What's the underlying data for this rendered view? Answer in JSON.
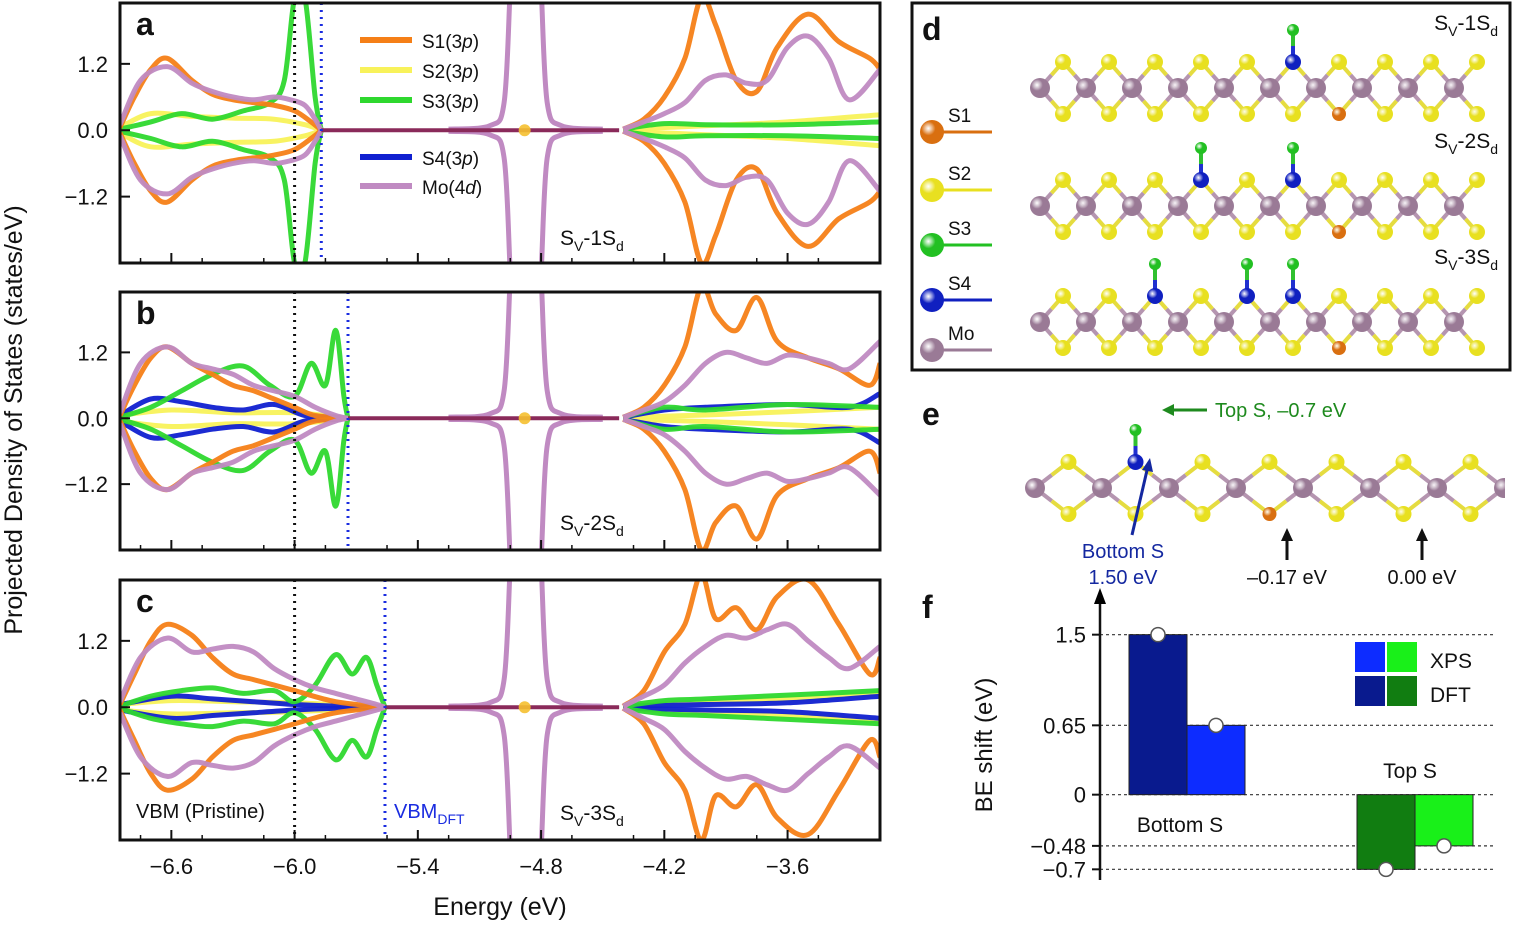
{
  "figure": {
    "shared_ylabel": "Projected Density of States (states/eV)",
    "shared_xlabel": "Energy (eV)"
  },
  "colors": {
    "S1": "#f57f17",
    "S2": "#f8f25a",
    "S3": "#2ed82e",
    "S4": "#1020d0",
    "Mo": "#c08ac2",
    "vbm_pristine": "#111111",
    "vbm_dft": "#1a2ce0",
    "top_s_label": "#1e8a1e",
    "bottom_s_label": "#1428a0",
    "xps_blue": "#0d2cff",
    "dft_blue": "#091a8e",
    "xps_green": "#19f019",
    "dft_green": "#117d11",
    "atom_S1": "#d96f10",
    "atom_S2": "#e8e020",
    "atom_S3": "#22c022",
    "atom_S4": "#1020c0",
    "atom_Mo": "#9a7a96"
  },
  "chart_data": [
    {
      "panel": "a",
      "type": "line",
      "annotation": "Sv-1Sd",
      "x_ticks": [
        "-6.6",
        "-6.0",
        "-5.4",
        "-4.8",
        "-4.2",
        "-3.6"
      ],
      "y_ticks": [
        "1.2",
        "0.0",
        "−1.2"
      ],
      "xlim": [
        -6.85,
        -3.15
      ],
      "ylim": [
        -2.4,
        2.3
      ],
      "vbm_pristine": -6.0,
      "vbm_dft": -5.87,
      "legend": [
        "S1(3p)",
        "S2(3p)",
        "S3(3p)",
        "S4(3p)",
        "Mo(4d)"
      ],
      "series": [
        {
          "name": "Mo(4d)",
          "x": [
            -6.85,
            -6.75,
            -6.62,
            -6.5,
            -6.4,
            -6.3,
            -6.2,
            -6.1,
            -6.02,
            -5.95,
            -5.9,
            -5.87
          ],
          "y": [
            0.1,
            0.9,
            1.15,
            0.85,
            0.7,
            0.6,
            0.55,
            0.6,
            0.55,
            0.45,
            0.2,
            0.0
          ]
        },
        {
          "name": "S1(3p)",
          "x": [
            -6.85,
            -6.78,
            -6.7,
            -6.62,
            -6.5,
            -6.4,
            -6.3,
            -6.2,
            -6.1,
            -6.0,
            -5.92,
            -5.87
          ],
          "y": [
            0.05,
            0.6,
            1.1,
            1.3,
            0.9,
            0.65,
            0.55,
            0.5,
            0.45,
            0.35,
            0.15,
            0.0
          ]
        },
        {
          "name": "S2(3p)",
          "x": [
            -6.85,
            -6.7,
            -6.5,
            -6.3,
            -6.1,
            -5.95,
            -5.87
          ],
          "y": [
            0.05,
            0.3,
            0.25,
            0.22,
            0.2,
            0.1,
            0.0
          ]
        },
        {
          "name": "S3(3p)",
          "x": [
            -6.85,
            -6.7,
            -6.55,
            -6.4,
            -6.25,
            -6.12,
            -6.05,
            -6.0,
            -5.95,
            -5.9,
            -5.87
          ],
          "y": [
            0.02,
            0.15,
            0.3,
            0.2,
            0.35,
            0.5,
            0.9,
            2.4,
            2.4,
            0.6,
            0.0
          ]
        }
      ],
      "series_high_energy": [
        {
          "name": "S1(3p)",
          "x": [
            -4.4,
            -4.3,
            -4.2,
            -4.1,
            -4.02,
            -3.95,
            -3.85,
            -3.75,
            -3.65,
            -3.5,
            -3.35,
            -3.2,
            -3.15
          ],
          "y": [
            0.02,
            0.2,
            0.6,
            1.3,
            2.4,
            1.9,
            0.9,
            0.7,
            1.5,
            2.1,
            1.6,
            1.3,
            1.1
          ]
        },
        {
          "name": "Mo(4d)",
          "x": [
            -4.4,
            -4.3,
            -4.2,
            -4.1,
            -4.0,
            -3.9,
            -3.8,
            -3.7,
            -3.6,
            -3.5,
            -3.4,
            -3.3,
            -3.15
          ],
          "y": [
            0.02,
            0.15,
            0.3,
            0.5,
            0.9,
            1.0,
            0.85,
            0.9,
            1.5,
            1.7,
            1.3,
            0.55,
            1.1
          ]
        },
        {
          "name": "S3(3p)",
          "x": [
            -4.4,
            -4.2,
            -4.0,
            -3.6,
            -3.15
          ],
          "y": [
            0.02,
            0.12,
            0.1,
            0.1,
            0.15
          ]
        },
        {
          "name": "S2(3p)",
          "x": [
            -4.4,
            -4.0,
            -3.6,
            -3.15
          ],
          "y": [
            0.02,
            0.08,
            0.15,
            0.28
          ]
        }
      ],
      "mo_peak_x": -4.88
    },
    {
      "panel": "b",
      "type": "line",
      "annotation": "Sv-2Sd",
      "x_ticks": [
        "-6.6",
        "-6.0",
        "-5.4",
        "-4.8",
        "-4.2",
        "-3.6"
      ],
      "y_ticks": [
        "1.2",
        "0.0",
        "−1.2"
      ],
      "xlim": [
        -6.85,
        -3.15
      ],
      "ylim": [
        -2.4,
        2.3
      ],
      "vbm_pristine": -6.0,
      "vbm_dft": -5.74,
      "series": [
        {
          "name": "Mo(4d)",
          "x": [
            -6.85,
            -6.75,
            -6.62,
            -6.5,
            -6.4,
            -6.3,
            -6.2,
            -6.1,
            -6.0,
            -5.9,
            -5.8,
            -5.74
          ],
          "y": [
            0.1,
            1.0,
            1.3,
            1.0,
            0.9,
            0.8,
            0.6,
            0.5,
            0.4,
            0.2,
            0.05,
            0.0
          ]
        },
        {
          "name": "S1(3p)",
          "x": [
            -6.85,
            -6.78,
            -6.7,
            -6.62,
            -6.5,
            -6.4,
            -6.3,
            -6.2,
            -6.1,
            -6.0,
            -5.9,
            -5.74
          ],
          "y": [
            0.05,
            0.6,
            1.1,
            1.3,
            1.0,
            0.8,
            0.6,
            0.5,
            0.35,
            0.2,
            0.05,
            0.0
          ]
        },
        {
          "name": "S3(3p)",
          "x": [
            -6.85,
            -6.7,
            -6.55,
            -6.4,
            -6.25,
            -6.12,
            -6.0,
            -5.92,
            -5.85,
            -5.8,
            -5.76,
            -5.74
          ],
          "y": [
            0.02,
            0.2,
            0.5,
            0.8,
            0.95,
            0.6,
            0.4,
            1.0,
            0.6,
            1.6,
            0.4,
            0.0
          ]
        },
        {
          "name": "S4(3p)",
          "x": [
            -6.85,
            -6.7,
            -6.55,
            -6.4,
            -6.25,
            -6.1,
            -5.95,
            -5.8,
            -5.74
          ],
          "y": [
            0.05,
            0.35,
            0.3,
            0.2,
            0.15,
            0.25,
            0.05,
            0.02,
            0.0
          ]
        },
        {
          "name": "S2(3p)",
          "x": [
            -6.85,
            -6.6,
            -6.3,
            -6.0,
            -5.74
          ],
          "y": [
            0.05,
            0.15,
            0.1,
            0.1,
            0.0
          ]
        }
      ],
      "series_high_energy": [
        {
          "name": "S1(3p)",
          "x": [
            -4.4,
            -4.3,
            -4.2,
            -4.1,
            -4.02,
            -3.95,
            -3.85,
            -3.75,
            -3.65,
            -3.5,
            -3.35,
            -3.2,
            -3.15
          ],
          "y": [
            0.02,
            0.2,
            0.6,
            1.3,
            2.4,
            1.9,
            1.6,
            2.2,
            1.4,
            1.1,
            0.9,
            0.6,
            1.0
          ]
        },
        {
          "name": "Mo(4d)",
          "x": [
            -4.4,
            -4.3,
            -4.2,
            -4.1,
            -4.0,
            -3.9,
            -3.8,
            -3.7,
            -3.6,
            -3.5,
            -3.4,
            -3.3,
            -3.15
          ],
          "y": [
            0.02,
            0.15,
            0.3,
            0.6,
            1.0,
            1.2,
            1.1,
            1.0,
            1.15,
            1.1,
            1.0,
            0.9,
            1.4
          ]
        },
        {
          "name": "S3(3p)",
          "x": [
            -4.4,
            -4.2,
            -4.0,
            -3.6,
            -3.15
          ],
          "y": [
            0.02,
            0.2,
            0.15,
            0.25,
            0.2
          ]
        },
        {
          "name": "S4(3p)",
          "x": [
            -4.4,
            -4.2,
            -4.0,
            -3.6,
            -3.3,
            -3.15
          ],
          "y": [
            0.02,
            0.15,
            0.2,
            0.25,
            0.2,
            0.45
          ]
        },
        {
          "name": "S2(3p)",
          "x": [
            -4.4,
            -4.0,
            -3.6,
            -3.15
          ],
          "y": [
            0.02,
            0.06,
            0.12,
            0.2
          ]
        }
      ],
      "mo_peak_x": -4.88
    },
    {
      "panel": "c",
      "type": "line",
      "annotation": "Sv-3Sd",
      "vbm_pristine_label": "VBM (Pristine)",
      "vbm_dft_label": "VBM",
      "vbm_dft_subscript": "DFT",
      "x_ticks": [
        "-6.6",
        "-6.0",
        "-5.4",
        "-4.8",
        "-4.2",
        "-3.6"
      ],
      "y_ticks": [
        "1.2",
        "0.0",
        "−1.2"
      ],
      "xlim": [
        -6.85,
        -3.15
      ],
      "ylim": [
        -2.4,
        2.3
      ],
      "vbm_pristine": -6.0,
      "vbm_dft": -5.56,
      "series": [
        {
          "name": "Mo(4d)",
          "x": [
            -6.85,
            -6.75,
            -6.62,
            -6.5,
            -6.4,
            -6.3,
            -6.2,
            -6.1,
            -6.0,
            -5.9,
            -5.8,
            -5.7,
            -5.6,
            -5.56
          ],
          "y": [
            0.1,
            0.9,
            1.25,
            1.0,
            1.05,
            1.1,
            1.0,
            0.7,
            0.5,
            0.35,
            0.25,
            0.15,
            0.05,
            0.0
          ]
        },
        {
          "name": "S1(3p)",
          "x": [
            -6.85,
            -6.78,
            -6.7,
            -6.62,
            -6.5,
            -6.4,
            -6.3,
            -6.2,
            -6.1,
            -6.0,
            -5.8,
            -5.56
          ],
          "y": [
            0.05,
            0.6,
            1.2,
            1.5,
            1.3,
            0.9,
            0.6,
            0.5,
            0.4,
            0.3,
            0.1,
            0.0
          ]
        },
        {
          "name": "S3(3p)",
          "x": [
            -6.85,
            -6.7,
            -6.55,
            -6.4,
            -6.25,
            -6.1,
            -6.0,
            -5.9,
            -5.8,
            -5.72,
            -5.65,
            -5.6,
            -5.56
          ],
          "y": [
            0.02,
            0.2,
            0.3,
            0.35,
            0.25,
            0.3,
            0.1,
            0.4,
            0.95,
            0.6,
            0.9,
            0.4,
            0.0
          ]
        },
        {
          "name": "S4(3p)",
          "x": [
            -6.85,
            -6.6,
            -6.4,
            -6.2,
            -6.0,
            -5.8,
            -5.56
          ],
          "y": [
            0.05,
            0.2,
            0.15,
            0.1,
            0.05,
            0.02,
            0.0
          ]
        },
        {
          "name": "S2(3p)",
          "x": [
            -6.85,
            -6.6,
            -6.3,
            -6.0,
            -5.56
          ],
          "y": [
            0.05,
            0.12,
            0.1,
            0.08,
            0.0
          ]
        }
      ],
      "series_high_energy": [
        {
          "name": "S1(3p)",
          "x": [
            -4.4,
            -4.3,
            -4.2,
            -4.1,
            -4.02,
            -3.95,
            -3.85,
            -3.75,
            -3.65,
            -3.5,
            -3.35,
            -3.2,
            -3.15
          ],
          "y": [
            0.02,
            0.3,
            1.0,
            1.5,
            2.4,
            1.6,
            1.8,
            1.4,
            2.0,
            2.3,
            1.5,
            0.6,
            0.9
          ]
        },
        {
          "name": "Mo(4d)",
          "x": [
            -4.4,
            -4.3,
            -4.2,
            -4.1,
            -4.0,
            -3.9,
            -3.8,
            -3.7,
            -3.6,
            -3.5,
            -3.4,
            -3.3,
            -3.15
          ],
          "y": [
            0.02,
            0.2,
            0.4,
            0.8,
            1.1,
            1.3,
            1.25,
            1.4,
            1.5,
            1.2,
            0.9,
            0.7,
            1.1
          ]
        },
        {
          "name": "S3(3p)",
          "x": [
            -4.4,
            -4.2,
            -4.0,
            -3.6,
            -3.15
          ],
          "y": [
            0.02,
            0.12,
            0.15,
            0.22,
            0.3
          ]
        },
        {
          "name": "S2(3p)",
          "x": [
            -4.4,
            -4.0,
            -3.6,
            -3.15
          ],
          "y": [
            0.02,
            0.1,
            0.15,
            0.25
          ]
        },
        {
          "name": "S4(3p)",
          "x": [
            -4.4,
            -4.0,
            -3.6,
            -3.15
          ],
          "y": [
            0.02,
            0.05,
            0.08,
            0.2
          ]
        }
      ],
      "mo_peak_x": -4.88
    },
    {
      "panel": "f",
      "type": "bar",
      "ylabel": "BE shift (eV)",
      "y_ticks": [
        "1.5",
        "0.65",
        "0",
        "−0.48",
        "−0.7"
      ],
      "y_tick_values": [
        1.5,
        0.65,
        0,
        -0.48,
        -0.7
      ],
      "ylim": [
        -0.8,
        1.75
      ],
      "categories": [
        "Bottom S",
        "Top S"
      ],
      "legend": [
        "XPS",
        "DFT"
      ],
      "series": [
        {
          "name": "DFT",
          "values": [
            1.5,
            -0.7
          ]
        },
        {
          "name": "XPS",
          "values": [
            0.65,
            -0.48
          ]
        }
      ]
    }
  ],
  "structures": {
    "panel_d_letter": "d",
    "panel_e_letter": "e",
    "panel_f_letter": "f",
    "legend_labels": [
      "S1",
      "S2",
      "S3",
      "S4",
      "Mo"
    ],
    "row_labels": [
      {
        "main": "S",
        "sub": "V",
        "rest": "-1S",
        "sub2": "d"
      },
      {
        "main": "S",
        "sub": "V",
        "rest": "-2S",
        "sub2": "d"
      },
      {
        "main": "S",
        "sub": "V",
        "rest": "-3S",
        "sub2": "d"
      }
    ],
    "panel_e": {
      "top_s": "Top S, –0.7 eV",
      "bottom_s_line1": "Bottom S",
      "bottom_s_line2": "1.50 eV",
      "arrow1": "–0.17 eV",
      "arrow2": "0.00 eV"
    }
  },
  "labels": {
    "letter_a": "a",
    "letter_b": "b",
    "letter_c": "c",
    "ann_a_main": "S",
    "ann_a_sub": "V",
    "ann_a_rest": "-1S",
    "ann_a_sub2": "d",
    "ann_b_main": "S",
    "ann_b_sub": "V",
    "ann_b_rest": "-2S",
    "ann_b_sub2": "d",
    "ann_c_main": "S",
    "ann_c_sub": "V",
    "ann_c_rest": "-3S",
    "ann_c_sub2": "d",
    "legend_S1": "S1(3",
    "legend_S2": "S2(3",
    "legend_S3": "S3(3",
    "legend_S4": "S4(3",
    "legend_Mo": "Mo(4",
    "legend_p": "p",
    "legend_d": "d",
    "legend_close": ")"
  }
}
